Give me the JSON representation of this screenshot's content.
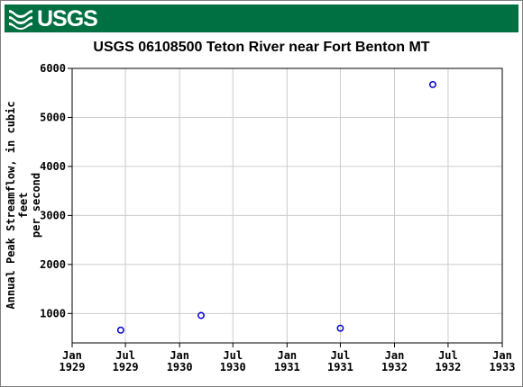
{
  "brand": {
    "name": "USGS",
    "banner_color": "#006f41"
  },
  "chart_data": {
    "type": "scatter",
    "title": "USGS 06108500 Teton River near Fort Benton MT",
    "ylabel": "Annual Peak Streamflow, in cubic feet per second",
    "ylabel_lines": [
      "Annual Peak Streamflow, in cubic feet",
      "per second"
    ],
    "xlabel": "",
    "ylim": [
      400,
      6000
    ],
    "yticks": [
      1000,
      2000,
      3000,
      4000,
      5000,
      6000
    ],
    "xlim": [
      "1929-01-01",
      "1933-01-01"
    ],
    "xticks": [
      {
        "date": "1929-01-01",
        "month": "Jan",
        "year": "1929"
      },
      {
        "date": "1929-07-01",
        "month": "Jul",
        "year": "1929"
      },
      {
        "date": "1930-01-01",
        "month": "Jan",
        "year": "1930"
      },
      {
        "date": "1930-07-01",
        "month": "Jul",
        "year": "1930"
      },
      {
        "date": "1931-01-01",
        "month": "Jan",
        "year": "1931"
      },
      {
        "date": "1931-07-01",
        "month": "Jul",
        "year": "1931"
      },
      {
        "date": "1932-01-01",
        "month": "Jan",
        "year": "1932"
      },
      {
        "date": "1932-07-01",
        "month": "Jul",
        "year": "1932"
      },
      {
        "date": "1933-01-01",
        "month": "Jan",
        "year": "1933"
      }
    ],
    "grid": true,
    "marker_color": "#0000cc",
    "points": [
      {
        "x": "1929-06-15",
        "y": 660
      },
      {
        "x": "1930-03-15",
        "y": 960
      },
      {
        "x": "1931-07-01",
        "y": 700
      },
      {
        "x": "1932-05-10",
        "y": 5670
      }
    ]
  }
}
